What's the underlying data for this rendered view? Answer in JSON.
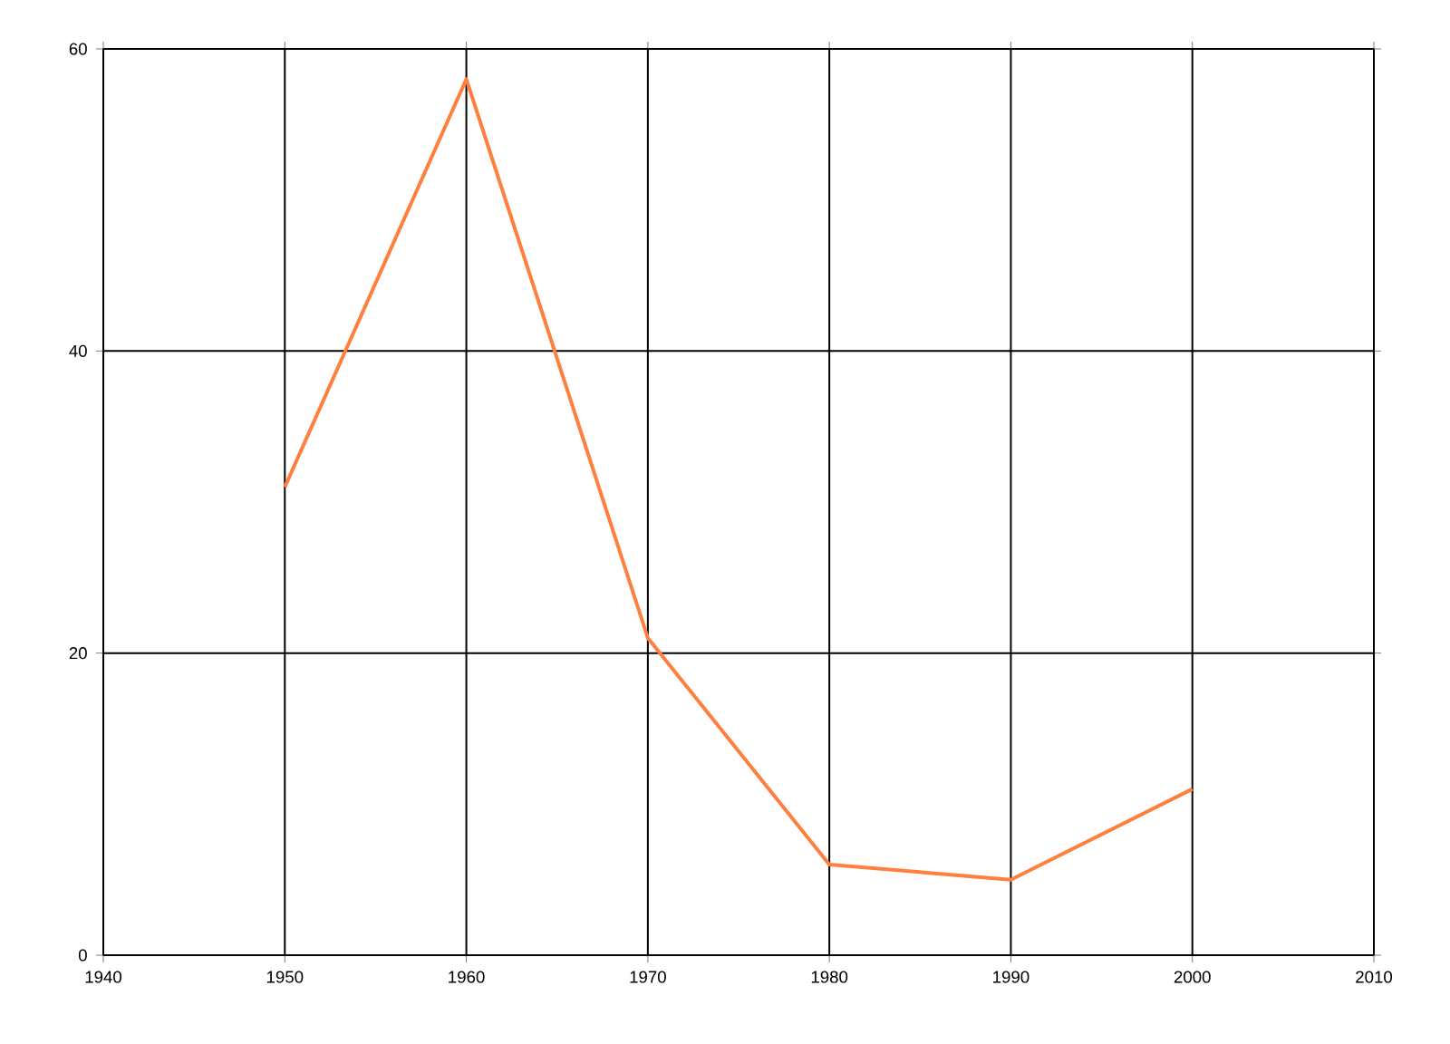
{
  "chart_data": {
    "type": "line",
    "x": [
      1950,
      1960,
      1970,
      1980,
      1990,
      2000
    ],
    "series": [
      {
        "color": "#ff7f3f",
        "values": [
          31,
          58,
          21,
          6,
          5,
          11
        ]
      }
    ],
    "xlim": [
      1940,
      2010
    ],
    "xticks": [
      1940,
      1950,
      1960,
      1970,
      1980,
      1990,
      2000,
      2010
    ],
    "ylim": [
      0,
      60
    ],
    "yticks": [
      0,
      20,
      40,
      60
    ],
    "grid": true,
    "marker": "none",
    "line_style": "solid"
  }
}
